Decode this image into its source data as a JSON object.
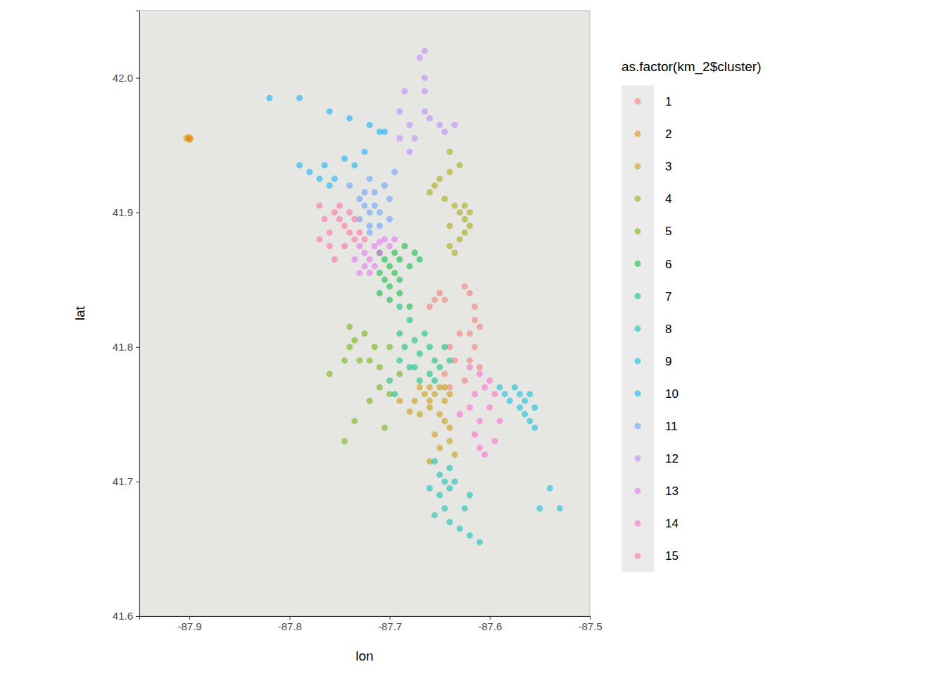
{
  "chart_data": {
    "type": "scatter",
    "x_label": "lon",
    "y_label": "lat",
    "legend_title": "as.factor(km_2$cluster)",
    "legend": "right",
    "marker": "circle",
    "xlim": [
      -87.95,
      -87.5
    ],
    "ylim": [
      41.6,
      42.05
    ],
    "xticks": [
      -87.9,
      -87.8,
      -87.7,
      -87.6,
      -87.5
    ],
    "yticks": [
      41.6,
      41.7,
      41.8,
      41.9,
      {
        "value": 42,
        "label": "42.0"
      }
    ],
    "series": [
      {
        "name": "1",
        "color": "#F8766D",
        "x": [
          -87.66,
          -87.655,
          -87.65,
          -87.645,
          -87.625,
          -87.62,
          -87.615,
          -87.615,
          -87.62,
          -87.615,
          -87.62,
          -87.61,
          -87.625,
          -87.64,
          -87.635,
          -87.645,
          -87.64,
          -87.61,
          -87.63
        ],
        "y": [
          41.83,
          41.835,
          41.84,
          41.835,
          41.845,
          41.84,
          41.83,
          41.82,
          41.81,
          41.8,
          41.79,
          41.785,
          41.775,
          41.8,
          41.79,
          41.78,
          41.77,
          41.815,
          41.81
        ]
      },
      {
        "name": "2",
        "color": "#E58700",
        "x": [
          -87.903,
          -87.9,
          -87.901,
          -87.899
        ],
        "y": [
          41.955,
          41.954,
          41.956,
          41.955
        ]
      },
      {
        "name": "3",
        "color": "#C99800",
        "x": [
          -87.67,
          -87.665,
          -87.66,
          -87.655,
          -87.65,
          -87.645,
          -87.64,
          -87.66,
          -87.67,
          -87.675,
          -87.68,
          -87.65,
          -87.645,
          -87.64,
          -87.655,
          -87.65,
          -87.64,
          -87.635,
          -87.66,
          -87.69,
          -87.645,
          -87.66
        ],
        "y": [
          41.77,
          41.765,
          41.77,
          41.765,
          41.77,
          41.76,
          41.765,
          41.755,
          41.75,
          41.76,
          41.752,
          41.75,
          41.745,
          41.74,
          41.735,
          41.725,
          41.73,
          41.72,
          41.715,
          41.76,
          41.77,
          41.76
        ]
      },
      {
        "name": "4",
        "color": "#A3A500",
        "x": [
          -87.64,
          -87.63,
          -87.64,
          -87.655,
          -87.66,
          -87.645,
          -87.635,
          -87.63,
          -87.625,
          -87.62,
          -87.625,
          -87.63,
          -87.64,
          -87.635,
          -87.625,
          -87.65,
          -87.62,
          -87.64
        ],
        "y": [
          41.945,
          41.935,
          41.93,
          41.92,
          41.915,
          41.91,
          41.905,
          41.9,
          41.895,
          41.89,
          41.885,
          41.88,
          41.875,
          41.87,
          41.905,
          41.925,
          41.9,
          41.89
        ]
      },
      {
        "name": "5",
        "color": "#6BB100",
        "x": [
          -87.76,
          -87.745,
          -87.74,
          -87.735,
          -87.74,
          -87.73,
          -87.72,
          -87.715,
          -87.71,
          -87.71,
          -87.7,
          -87.72,
          -87.735,
          -87.705,
          -87.745,
          -87.69,
          -87.7,
          -87.725
        ],
        "y": [
          41.78,
          41.79,
          41.8,
          41.805,
          41.815,
          41.79,
          41.79,
          41.8,
          41.785,
          41.77,
          41.765,
          41.76,
          41.745,
          41.74,
          41.73,
          41.78,
          41.8,
          41.81
        ]
      },
      {
        "name": "6",
        "color": "#00BA38",
        "x": [
          -87.71,
          -87.705,
          -87.7,
          -87.695,
          -87.69,
          -87.71,
          -87.705,
          -87.7,
          -87.69,
          -87.68,
          -87.685,
          -87.675,
          -87.67,
          -87.7,
          -87.69,
          -87.68,
          -87.71,
          -87.695
        ],
        "y": [
          41.87,
          41.865,
          41.86,
          41.87,
          41.865,
          41.855,
          41.85,
          41.845,
          41.85,
          41.86,
          41.875,
          41.87,
          41.865,
          41.835,
          41.84,
          41.83,
          41.84,
          41.855
        ]
      },
      {
        "name": "7",
        "color": "#00BF7D",
        "x": [
          -87.69,
          -87.685,
          -87.675,
          -87.67,
          -87.66,
          -87.655,
          -87.65,
          -87.66,
          -87.67,
          -87.68,
          -87.69,
          -87.7,
          -87.695,
          -87.645,
          -87.64,
          -87.665,
          -87.68,
          -87.655,
          -87.675,
          -87.69
        ],
        "y": [
          41.81,
          41.8,
          41.805,
          41.795,
          41.8,
          41.79,
          41.785,
          41.78,
          41.775,
          41.785,
          41.79,
          41.775,
          41.765,
          41.8,
          41.79,
          41.81,
          41.82,
          41.775,
          41.785,
          41.83
        ]
      },
      {
        "name": "8",
        "color": "#00C0AF",
        "x": [
          -87.655,
          -87.65,
          -87.645,
          -87.64,
          -87.65,
          -87.645,
          -87.655,
          -87.64,
          -87.63,
          -87.62,
          -87.61,
          -87.625,
          -87.635,
          -87.66,
          -87.64,
          -87.62
        ],
        "y": [
          41.715,
          41.705,
          41.7,
          41.695,
          41.69,
          41.68,
          41.675,
          41.67,
          41.665,
          41.66,
          41.655,
          41.68,
          41.7,
          41.695,
          41.71,
          41.69
        ]
      },
      {
        "name": "9",
        "color": "#00BCD8",
        "x": [
          -87.575,
          -87.57,
          -87.565,
          -87.56,
          -87.555,
          -87.565,
          -87.56,
          -87.555,
          -87.57,
          -87.58,
          -87.585,
          -87.59,
          -87.54,
          -87.55,
          -87.53
        ],
        "y": [
          41.77,
          41.765,
          41.76,
          41.765,
          41.755,
          41.75,
          41.745,
          41.74,
          41.755,
          41.76,
          41.765,
          41.77,
          41.695,
          41.68,
          41.68
        ]
      },
      {
        "name": "10",
        "color": "#00B0F6",
        "x": [
          -87.82,
          -87.79,
          -87.76,
          -87.74,
          -87.72,
          -87.71,
          -87.79,
          -87.78,
          -87.77,
          -87.76,
          -87.755,
          -87.765,
          -87.745,
          -87.735,
          -87.725,
          -87.705
        ],
        "y": [
          41.985,
          41.985,
          41.975,
          41.97,
          41.965,
          41.96,
          41.935,
          41.93,
          41.925,
          41.92,
          41.925,
          41.935,
          41.94,
          41.935,
          41.945,
          41.96
        ]
      },
      {
        "name": "11",
        "color": "#619CFF",
        "x": [
          -87.73,
          -87.725,
          -87.72,
          -87.715,
          -87.71,
          -87.73,
          -87.72,
          -87.71,
          -87.725,
          -87.715,
          -87.7,
          -87.74,
          -87.72,
          -87.705,
          -87.695,
          -87.7,
          -87.72
        ],
        "y": [
          41.91,
          41.905,
          41.9,
          41.905,
          41.9,
          41.895,
          41.89,
          41.89,
          41.915,
          41.915,
          41.91,
          41.92,
          41.925,
          41.92,
          41.93,
          41.895,
          41.885
        ]
      },
      {
        "name": "12",
        "color": "#B983FF",
        "x": [
          -87.665,
          -87.67,
          -87.665,
          -87.665,
          -87.685,
          -87.69,
          -87.665,
          -87.66,
          -87.68,
          -87.65,
          -87.645,
          -87.635,
          -87.69,
          -87.675,
          -87.68
        ],
        "y": [
          42.02,
          42.015,
          42.0,
          41.99,
          41.99,
          41.975,
          41.975,
          41.97,
          41.965,
          41.965,
          41.96,
          41.965,
          41.955,
          41.955,
          41.945
        ]
      },
      {
        "name": "13",
        "color": "#E76BF3",
        "x": [
          -87.73,
          -87.725,
          -87.72,
          -87.715,
          -87.71,
          -87.705,
          -87.7,
          -87.725,
          -87.72,
          -87.73,
          -87.715,
          -87.735,
          -87.71,
          -87.695
        ],
        "y": [
          41.875,
          41.87,
          41.865,
          41.875,
          41.87,
          41.88,
          41.875,
          41.86,
          41.855,
          41.855,
          41.86,
          41.865,
          41.878,
          41.88
        ]
      },
      {
        "name": "14",
        "color": "#FD61D1",
        "x": [
          -87.62,
          -87.61,
          -87.605,
          -87.6,
          -87.595,
          -87.615,
          -87.62,
          -87.61,
          -87.615,
          -87.61,
          -87.605,
          -87.595,
          -87.59,
          -87.6,
          -87.63
        ],
        "y": [
          41.785,
          41.78,
          41.77,
          41.775,
          41.765,
          41.765,
          41.755,
          41.745,
          41.735,
          41.725,
          41.72,
          41.73,
          41.745,
          41.755,
          41.75
        ]
      },
      {
        "name": "15",
        "color": "#FF67A4",
        "x": [
          -87.77,
          -87.765,
          -87.76,
          -87.755,
          -87.75,
          -87.745,
          -87.74,
          -87.735,
          -87.73,
          -87.725,
          -87.76,
          -87.745,
          -87.75,
          -87.74,
          -87.77,
          -87.755,
          -87.735
        ],
        "y": [
          41.905,
          41.895,
          41.885,
          41.9,
          41.895,
          41.89,
          41.885,
          41.88,
          41.885,
          41.88,
          41.875,
          41.875,
          41.905,
          41.9,
          41.88,
          41.865,
          41.895
        ]
      }
    ]
  }
}
